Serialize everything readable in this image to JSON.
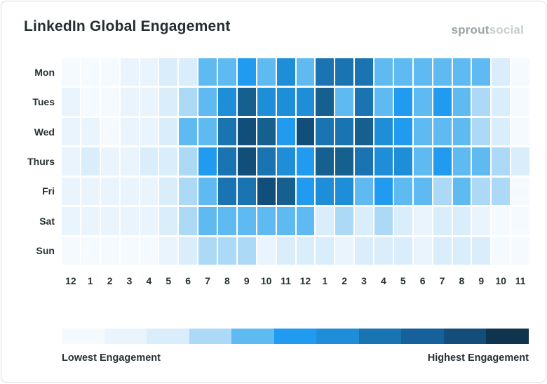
{
  "title": "LinkedIn Global Engagement",
  "logo": {
    "bold": "sprout",
    "light": "social"
  },
  "chart_data": {
    "type": "heatmap",
    "title": "LinkedIn Global Engagement",
    "rows": [
      "Mon",
      "Tues",
      "Wed",
      "Thurs",
      "Fri",
      "Sat",
      "Sun"
    ],
    "columns": [
      "12",
      "1",
      "2",
      "3",
      "4",
      "5",
      "6",
      "7",
      "8",
      "9",
      "10",
      "11",
      "12",
      "1",
      "2",
      "3",
      "4",
      "5",
      "6",
      "7",
      "8",
      "9",
      "10",
      "11"
    ],
    "scale_note": "engagement level 0 (lowest) to 9 (highest)",
    "levels": [
      [
        0,
        0,
        0,
        1,
        1,
        2,
        2,
        4,
        4,
        5,
        4,
        6,
        4,
        7,
        7,
        7,
        4,
        4,
        4,
        4,
        4,
        4,
        2,
        0
      ],
      [
        1,
        0,
        0,
        1,
        1,
        2,
        3,
        4,
        6,
        8,
        6,
        6,
        6,
        8,
        4,
        7,
        4,
        5,
        4,
        5,
        4,
        3,
        2,
        0
      ],
      [
        1,
        1,
        0,
        1,
        1,
        2,
        4,
        4,
        7,
        9,
        8,
        5,
        9,
        7,
        7,
        8,
        6,
        5,
        4,
        4,
        4,
        3,
        2,
        0
      ],
      [
        1,
        2,
        1,
        1,
        2,
        2,
        3,
        5,
        7,
        9,
        7,
        6,
        5,
        8,
        8,
        7,
        6,
        6,
        4,
        5,
        4,
        4,
        3,
        2
      ],
      [
        1,
        1,
        1,
        1,
        1,
        2,
        3,
        4,
        7,
        7,
        9,
        8,
        5,
        6,
        6,
        4,
        5,
        4,
        4,
        3,
        4,
        3,
        3,
        0
      ],
      [
        1,
        1,
        1,
        1,
        1,
        2,
        3,
        4,
        4,
        4,
        4,
        4,
        4,
        2,
        3,
        2,
        3,
        2,
        1,
        2,
        2,
        1,
        0,
        0
      ],
      [
        0,
        0,
        0,
        0,
        0,
        1,
        2,
        3,
        3,
        3,
        1,
        2,
        2,
        2,
        1,
        2,
        2,
        2,
        1,
        2,
        2,
        2,
        0,
        0
      ]
    ],
    "palette": [
      "#f4fafe",
      "#e9f4fc",
      "#d9edfa",
      "#abd9f6",
      "#5fbaf2",
      "#209bf0",
      "#1e8ed9",
      "#1b74b2",
      "#15608f",
      "#114e79"
    ],
    "legend_colors": [
      "#f4fafe",
      "#e9f4fc",
      "#d9edfa",
      "#abd9f6",
      "#5fbaf2",
      "#209bf0",
      "#1e8ed9",
      "#1b74b2",
      "#16619b",
      "#124e79",
      "#0f344e"
    ],
    "legend_min_label": "Lowest Engagement",
    "legend_max_label": "Highest Engagement",
    "legend_position": "bottom"
  }
}
